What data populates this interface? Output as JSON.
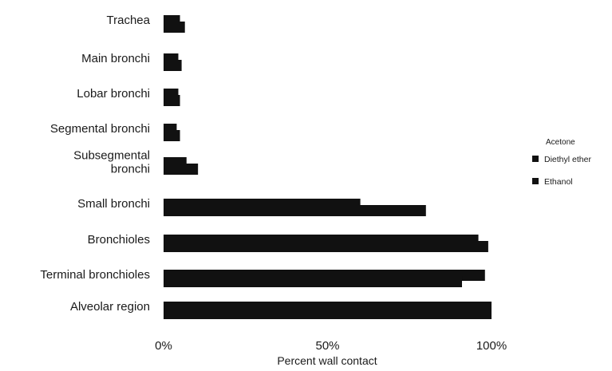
{
  "chart_data": {
    "type": "bar",
    "orientation": "horizontal",
    "categories": [
      "Trachea",
      "Main bronchi",
      "Lobar bronchi",
      "Segmental bronchi",
      "Subsegmental bronchi",
      "Small bronchi",
      "Bronchioles",
      "Terminal bronchioles",
      "Alveolar region"
    ],
    "category_lines": [
      [
        "Trachea"
      ],
      [
        "Main bronchi"
      ],
      [
        "Lobar bronchi"
      ],
      [
        "Segmental bronchi"
      ],
      [
        "Subsegmental",
        "bronchi"
      ],
      [
        "Small bronchi"
      ],
      [
        "Bronchioles"
      ],
      [
        "Terminal bronchioles"
      ],
      [
        "Alveolar region"
      ]
    ],
    "series": [
      {
        "name": "Diethyl ether",
        "values": [
          5,
          4.5,
          4.5,
          4,
          7,
          60,
          96,
          98,
          100
        ]
      },
      {
        "name": "Ethanol",
        "values": [
          6.5,
          5.5,
          5,
          5,
          10.5,
          80,
          99,
          91,
          100
        ]
      }
    ],
    "legend_title": "Acetone",
    "xlabel": "Percent wall contact",
    "ylabel": "",
    "xlim": [
      0,
      100
    ],
    "xticks": [
      0,
      50,
      100
    ],
    "xtick_labels": [
      "0%",
      "50%",
      "100%"
    ],
    "grid": false,
    "legend_position": "right",
    "colors": {
      "bar": "#111111",
      "text": "#1a1a1a",
      "background": "#ffffff"
    }
  }
}
